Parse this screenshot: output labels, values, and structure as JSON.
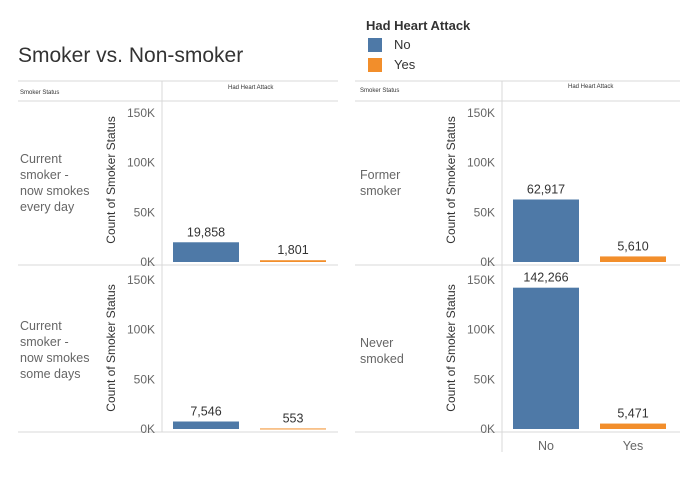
{
  "title": "Smoker vs. Non-smoker",
  "legend": {
    "title": "Had Heart Attack",
    "items": [
      {
        "label": "No",
        "color": "#4e79a7"
      },
      {
        "label": "Yes",
        "color": "#f28e2b"
      }
    ]
  },
  "headers": {
    "row_header": "Smoker Status",
    "column_header": "Had Heart Attack"
  },
  "chart_data": {
    "type": "bar",
    "title": "Smoker vs. Non-smoker",
    "ylabel": "Count of Smoker Status",
    "categories": [
      "No",
      "Yes"
    ],
    "ylim": [
      0,
      150000
    ],
    "yticks": [
      "0K",
      "50K",
      "100K",
      "150K"
    ],
    "panels": [
      {
        "label": "Current smoker - now smokes every day",
        "display_label": "Current\nsmoker -\nnow smokes\nevery day",
        "values": [
          19858,
          1801
        ],
        "value_labels": [
          "19,858",
          "1,801"
        ]
      },
      {
        "label": "Former smoker",
        "display_label": "Former\nsmoker",
        "values": [
          62917,
          5610
        ],
        "value_labels": [
          "62,917",
          "5,610"
        ]
      },
      {
        "label": "Current smoker - now smokes some days",
        "display_label": "Current\nsmoker -\nnow smokes\nsome days",
        "values": [
          7546,
          553
        ],
        "value_labels": [
          "7,546",
          "553"
        ]
      },
      {
        "label": "Never smoked",
        "display_label": "Never\nsmoked",
        "values": [
          142266,
          5471
        ],
        "value_labels": [
          "142,266",
          "5,471"
        ]
      }
    ]
  }
}
